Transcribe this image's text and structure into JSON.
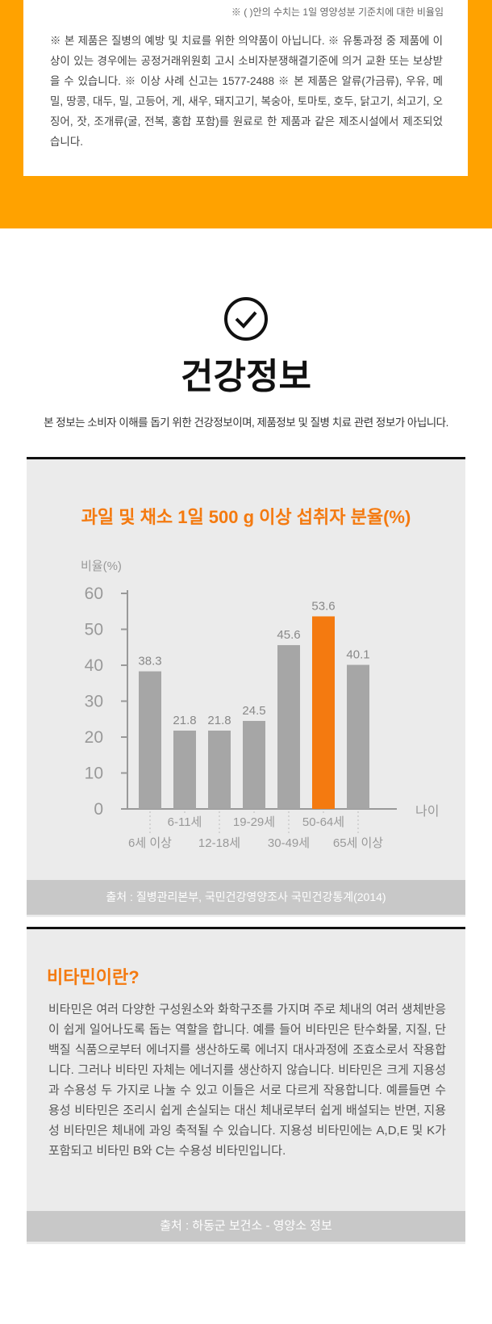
{
  "notice": {
    "note": "※ ( )안의 수치는 1일 영양성분 기준치에 대한 비율임",
    "text": "※ 본 제품은 질병의 예방 및 치료를 위한 의약품이 아닙니다. ※ 유통과정 중 제품에 이상이 있는 경우에는 공정거래위원회 고시 소비자분쟁해결기준에 의거 교환 또는 보상받을 수 있습니다. ※ 이상 사례 신고는 1577-2488 ※ 본 제품은 알류(가금류), 우유, 메밀, 땅콩, 대두, 밀, 고등어, 게, 새우, 돼지고기, 복숭아, 토마토, 호두, 닭고기, 쇠고기, 오징어, 잣, 조개류(굴, 전복, 홍합 포함)를 원료로 한 제품과 같은 제조시설에서 제조되었습니다."
  },
  "health": {
    "title": "건강정보",
    "subtitle": "본 정보는 소비자 이해를 돕기 위한 건강정보이며, 제품정보 및 질병 치료 관련 정보가 아닙니다."
  },
  "chart_data": {
    "type": "bar",
    "title": "과일 및 채소 1일 500 g 이상 섭취자 분율(%)",
    "y_label": "비율(%)",
    "x_label": "나이",
    "categories": [
      "6세 이상",
      "6-11세",
      "12-18세",
      "19-29세",
      "30-49세",
      "50-64세",
      "65세 이상"
    ],
    "values": [
      38.3,
      21.8,
      21.8,
      24.5,
      45.6,
      53.6,
      40.1
    ],
    "colors": [
      "#a6a6a6",
      "#a6a6a6",
      "#a6a6a6",
      "#a6a6a6",
      "#a6a6a6",
      "#f47a10",
      "#a6a6a6"
    ],
    "ylim": [
      0,
      60
    ],
    "yticks": [
      0,
      10,
      20,
      30,
      40,
      50,
      60
    ],
    "source": "출처 : 질병관리본부, 국민건강영양조사 국민건강통계(2014)"
  },
  "vitamin": {
    "title": "비타민이란?",
    "text": "비타민은 여러 다양한 구성원소와 화학구조를 가지며 주로 체내의 여러 생체반응이 쉽게 일어나도록 돕는 역할을 합니다. 예를 들어 비타민은 탄수화물, 지질, 단백질 식품으로부터 에너지를 생산하도록 에너지 대사과정에 조효소로서 작용합니다. 그러나 비타민 자체는 에너지를 생산하지 않습니다. 비타민은 크게 지용성과 수용성 두 가지로 나눌 수 있고 이들은 서로 다르게 작용합니다. 예를들면 수용성 비타민은 조리시 쉽게 손실되는 대신 체내로부터 쉽게 배설되는 반면, 지용성 비타민은 체내에 과잉 축적될 수 있습니다. 지용성 비타민에는 A,D,E 및 K가 포함되고 비타민 B와 C는 수용성 비타민입니다.",
    "source": "출처 : 하동군 보건소 - 영양소 정보"
  }
}
